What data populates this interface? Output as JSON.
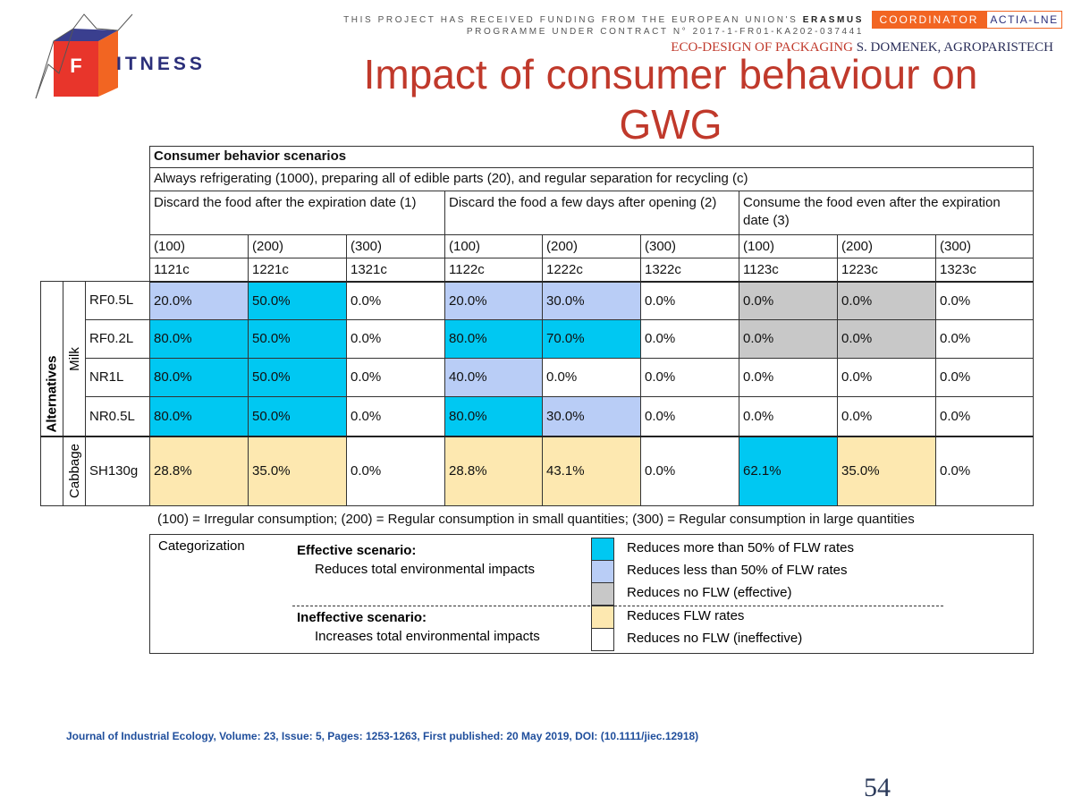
{
  "logo": {
    "initial": "F",
    "rest": "ITNESS"
  },
  "header": {
    "funding_line1": "THIS PROJECT HAS RECEIVED FUNDING FROM THE EUROPEAN UNION'S",
    "funding_emph": "ERASMUS",
    "funding_line2": "PROGRAMME UNDER CONTRACT N° 2017-1-FR01-KA202-037441",
    "coordinator_label": "COORDINATOR",
    "coordinator": "ACTIA-LNE",
    "course": "ECO-DESIGN OF PACKAGING",
    "author": "S. DOMENEK, AGROPARISTECH"
  },
  "title": "Impact of consumer behaviour on GWG",
  "table": {
    "title": "Consumer behavior scenarios",
    "baseline": "Always refrigerating (1000), preparing all of edible parts (20), and regular separation for recycling (c)",
    "groups": [
      "Discard the food after the expiration date (1)",
      "Discard the food a few days after opening (2)",
      "Consume the food even after the expiration date (3)"
    ],
    "consumption": [
      "(100)",
      "(200)",
      "(300)",
      "(100)",
      "(200)",
      "(300)",
      "(100)",
      "(200)",
      "(300)"
    ],
    "codes": [
      "1121c",
      "1221c",
      "1321c",
      "1122c",
      "1222c",
      "1322c",
      "1123c",
      "1223c",
      "1323c"
    ],
    "axis_label": "Alternatives",
    "sections": [
      {
        "label": "Milk",
        "rows": [
          {
            "label": "RF0.5L",
            "cells": [
              {
                "text": "20.0%",
                "fill": "#b9cdf6"
              },
              {
                "text": "50.0%",
                "fill": "#00c8f2"
              },
              {
                "text": "0.0%",
                "fill": "#ffffff"
              },
              {
                "text": "20.0%",
                "fill": "#b9cdf6"
              },
              {
                "text": "30.0%",
                "fill": "#b9cdf6"
              },
              {
                "text": "0.0%",
                "fill": "#ffffff"
              },
              {
                "text": "0.0%",
                "fill": "#c8c8c8"
              },
              {
                "text": "0.0%",
                "fill": "#c8c8c8"
              },
              {
                "text": "0.0%",
                "fill": "#ffffff"
              }
            ]
          },
          {
            "label": "RF0.2L",
            "cells": [
              {
                "text": "80.0%",
                "fill": "#00c8f2"
              },
              {
                "text": "50.0%",
                "fill": "#00c8f2"
              },
              {
                "text": "0.0%",
                "fill": "#ffffff"
              },
              {
                "text": "80.0%",
                "fill": "#00c8f2"
              },
              {
                "text": "70.0%",
                "fill": "#00c8f2"
              },
              {
                "text": "0.0%",
                "fill": "#ffffff"
              },
              {
                "text": "0.0%",
                "fill": "#c8c8c8"
              },
              {
                "text": "0.0%",
                "fill": "#c8c8c8"
              },
              {
                "text": "0.0%",
                "fill": "#ffffff"
              }
            ]
          },
          {
            "label": "NR1L",
            "cells": [
              {
                "text": "80.0%",
                "fill": "#00c8f2"
              },
              {
                "text": "50.0%",
                "fill": "#00c8f2"
              },
              {
                "text": "0.0%",
                "fill": "#ffffff"
              },
              {
                "text": "40.0%",
                "fill": "#b9cdf6"
              },
              {
                "text": "0.0%",
                "fill": "#ffffff"
              },
              {
                "text": "0.0%",
                "fill": "#ffffff"
              },
              {
                "text": "0.0%",
                "fill": "#ffffff"
              },
              {
                "text": "0.0%",
                "fill": "#ffffff"
              },
              {
                "text": "0.0%",
                "fill": "#ffffff"
              }
            ]
          },
          {
            "label": "NR0.5L",
            "cells": [
              {
                "text": "80.0%",
                "fill": "#00c8f2"
              },
              {
                "text": "50.0%",
                "fill": "#00c8f2"
              },
              {
                "text": "0.0%",
                "fill": "#ffffff"
              },
              {
                "text": "80.0%",
                "fill": "#00c8f2"
              },
              {
                "text": "30.0%",
                "fill": "#b9cdf6"
              },
              {
                "text": "0.0%",
                "fill": "#ffffff"
              },
              {
                "text": "0.0%",
                "fill": "#ffffff"
              },
              {
                "text": "0.0%",
                "fill": "#ffffff"
              },
              {
                "text": "0.0%",
                "fill": "#ffffff"
              }
            ]
          }
        ]
      },
      {
        "label": "Cabbage",
        "rows": [
          {
            "label": "SH130g",
            "cells": [
              {
                "text": "28.8%",
                "fill": "#fde8b0"
              },
              {
                "text": "35.0%",
                "fill": "#fde8b0"
              },
              {
                "text": "0.0%",
                "fill": "#ffffff"
              },
              {
                "text": "28.8%",
                "fill": "#fde8b0"
              },
              {
                "text": "43.1%",
                "fill": "#fde8b0"
              },
              {
                "text": "0.0%",
                "fill": "#ffffff"
              },
              {
                "text": "62.1%",
                "fill": "#00c8f2"
              },
              {
                "text": "35.0%",
                "fill": "#fde8b0"
              },
              {
                "text": "0.0%",
                "fill": "#ffffff"
              }
            ]
          }
        ]
      }
    ]
  },
  "footnote": "(100) = Irregular consumption; (200) = Regular consumption in small quantities; (300) = Regular consumption in large quantities",
  "legend": {
    "title": "Categorization",
    "effective": {
      "name": "Effective scenario:",
      "desc": "Reduces total environmental impacts"
    },
    "ineffective": {
      "name": "Ineffective scenario:",
      "desc": "Increases total environmental impacts"
    },
    "items": [
      {
        "color": "#00c8f2",
        "label": "Reduces more than 50% of FLW rates"
      },
      {
        "color": "#b9cdf6",
        "label": "Reduces less than 50% of FLW rates"
      },
      {
        "color": "#c8c8c8",
        "label": "Reduces no FLW (effective)"
      },
      {
        "color": "#fde8b0",
        "label": "Reduces FLW rates"
      },
      {
        "color": "#ffffff",
        "label": "Reduces no FLW (ineffective)"
      }
    ]
  },
  "citation": "Journal of Industrial Ecology, Volume: 23, Issue: 5, Pages: 1253-1263, First published: 20 May 2019, DOI: (10.1111/jiec.12918)",
  "page_number": "54"
}
